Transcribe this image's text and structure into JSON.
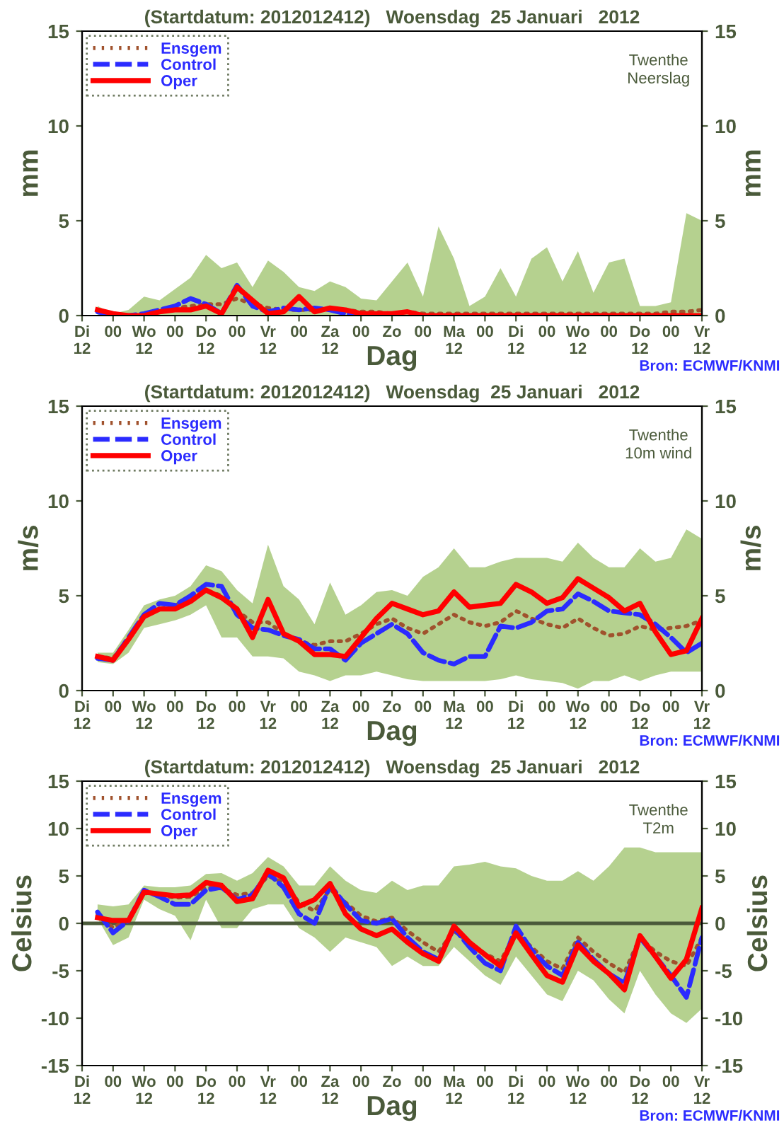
{
  "chart_data": [
    {
      "type": "line",
      "title": "(Startdatum: 2012012412)   Woensdag  25 Januari   2012",
      "xlabel": "Dag",
      "ylabel": "mm",
      "y2label": "mm",
      "annotations": [
        "Twenthe\nNeerslag",
        "Bron: ECMWF/KNMI"
      ],
      "legend": "top left",
      "grid": false,
      "categories": [
        "Di\n12",
        null,
        "00",
        null,
        "Wo\n12",
        null,
        "00",
        null,
        "Do\n12",
        null,
        "00",
        null,
        "Vr\n12",
        null,
        "00",
        null,
        "Za\n12",
        null,
        "00",
        null,
        "Zo",
        null,
        "00",
        null,
        "Ma\n12",
        null,
        "00",
        null,
        "Di\n12",
        null,
        "00",
        null,
        "Wo\n12",
        null,
        "00",
        null,
        "Do\n12",
        null,
        "00",
        null,
        "Vr\n12"
      ],
      "ylim": [
        0,
        15
      ],
      "yticks": [
        0,
        5,
        10,
        15
      ],
      "y2lim": [
        0,
        15
      ],
      "y2ticks": [
        0,
        5,
        10,
        15
      ],
      "series": [
        {
          "name": "Ensgem",
          "color": "#a0522d",
          "line_style": "dotted",
          "values": [
            null,
            0.2,
            0.1,
            0.0,
            0.1,
            0.2,
            0.4,
            0.5,
            0.6,
            0.6,
            0.9,
            0.6,
            0.4,
            0.3,
            0.3,
            0.3,
            0.4,
            0.3,
            0.2,
            0.2,
            0.1,
            0.2,
            0.1,
            0.1,
            0.1,
            0.1,
            0.1,
            0.1,
            0.1,
            0.1,
            0.1,
            0.1,
            0.1,
            0.1,
            0.1,
            0.1,
            0.1,
            0.1,
            0.2,
            0.2,
            0.3
          ],
          "lower": [
            null,
            0,
            0,
            0,
            0,
            0,
            0,
            0,
            0,
            0,
            0,
            0,
            0,
            0,
            0,
            0,
            0,
            0,
            0,
            0,
            0,
            0,
            0,
            0,
            0,
            0,
            0,
            0,
            0,
            0,
            0,
            0,
            0,
            0,
            0,
            0,
            0,
            0,
            0,
            0,
            0
          ],
          "upper": [
            null,
            0.5,
            0.1,
            0.3,
            1.0,
            0.8,
            1.4,
            2.0,
            3.2,
            2.5,
            2.8,
            1.5,
            2.9,
            2.3,
            1.5,
            1.3,
            1.8,
            1.5,
            0.9,
            0.8,
            1.8,
            2.8,
            1.0,
            4.7,
            3.0,
            0.5,
            1.0,
            2.5,
            1.0,
            3.0,
            3.6,
            1.8,
            3.4,
            1.2,
            2.8,
            3.0,
            0.5,
            0.5,
            0.7,
            5.4,
            5.0
          ]
        },
        {
          "name": "Control",
          "color": "#2b2bff",
          "line_style": "dashed",
          "values": [
            null,
            0.2,
            0.0,
            0.0,
            0.1,
            0.3,
            0.5,
            0.9,
            0.6,
            0.1,
            1.6,
            0.5,
            0.2,
            0.4,
            0.3,
            0.4,
            0.3,
            0.1,
            0.0,
            null,
            null,
            null,
            null,
            null,
            null,
            null,
            null,
            null,
            null,
            null,
            null,
            null,
            null,
            null,
            null,
            null,
            null,
            null,
            null,
            null,
            null
          ]
        },
        {
          "name": "Oper",
          "color": "#ff0000",
          "line_style": "solid",
          "values": [
            null,
            0.3,
            0.1,
            0.0,
            0.0,
            0.2,
            0.3,
            0.3,
            0.5,
            0.1,
            1.5,
            0.8,
            0.1,
            0.2,
            1.0,
            0.2,
            0.4,
            0.3,
            0.1,
            0.1,
            0.1,
            0.2,
            0.0,
            0.0,
            0.0,
            0.0,
            0.0,
            0.0,
            0.0,
            0.0,
            0.0,
            0.0,
            0.0,
            0.0,
            0.0,
            0.0,
            0.0,
            0.0,
            0.0,
            0.0,
            0.0
          ]
        }
      ]
    },
    {
      "type": "line",
      "title": "(Startdatum: 2012012412)   Woensdag  25 Januari   2012",
      "xlabel": "Dag",
      "ylabel": "m/s",
      "y2label": "m/s",
      "annotations": [
        "Twenthe\n10m wind",
        "Bron: ECMWF/KNMI"
      ],
      "legend": "top left",
      "grid": false,
      "categories": [
        "Di\n12",
        null,
        "00",
        null,
        "Wo\n12",
        null,
        "00",
        null,
        "Do\n12",
        null,
        "00",
        null,
        "Vr\n12",
        null,
        "00",
        null,
        "Za\n12",
        null,
        "00",
        null,
        "Zo",
        null,
        "00",
        null,
        "Ma\n12",
        null,
        "00",
        null,
        "Di\n12",
        null,
        "00",
        null,
        "Wo\n12",
        null,
        "00",
        null,
        "Do\n12",
        null,
        "00",
        null,
        "Vr\n12"
      ],
      "ylim": [
        0,
        15
      ],
      "yticks": [
        0,
        5,
        10,
        15
      ],
      "y2lim": [
        0,
        15
      ],
      "y2ticks": [
        0,
        5,
        10,
        15
      ],
      "series": [
        {
          "name": "Ensgem",
          "color": "#a0522d",
          "line_style": "dotted",
          "values": [
            null,
            1.8,
            1.7,
            2.8,
            3.9,
            4.3,
            4.5,
            4.8,
            5.3,
            5.0,
            4.2,
            3.6,
            3.6,
            3.0,
            2.6,
            2.4,
            2.6,
            2.6,
            3.0,
            3.5,
            3.8,
            3.3,
            3.0,
            3.5,
            4.0,
            3.6,
            3.4,
            3.6,
            4.2,
            3.8,
            3.5,
            3.3,
            3.8,
            3.3,
            2.9,
            3.0,
            3.4,
            3.2,
            3.3,
            3.4,
            3.7
          ],
          "lower": [
            null,
            1.5,
            1.4,
            2.0,
            3.3,
            3.5,
            3.7,
            4.0,
            4.5,
            2.8,
            2.8,
            1.8,
            1.8,
            1.7,
            1.0,
            0.8,
            0.5,
            0.8,
            0.8,
            1.0,
            0.8,
            0.6,
            0.5,
            0.5,
            0.5,
            0.5,
            0.5,
            0.6,
            0.8,
            0.6,
            0.5,
            0.4,
            0.1,
            0.5,
            0.5,
            0.8,
            0.5,
            0.8,
            1.0,
            1.0,
            1.0
          ],
          "upper": [
            null,
            2.0,
            2.0,
            3.2,
            4.5,
            4.8,
            5.0,
            5.5,
            6.6,
            6.3,
            5.3,
            4.6,
            7.7,
            5.5,
            4.8,
            3.5,
            5.7,
            4.0,
            4.5,
            5.2,
            5.3,
            5.0,
            6.0,
            6.5,
            7.5,
            6.5,
            6.5,
            6.8,
            7.0,
            7.0,
            7.0,
            6.8,
            7.8,
            7.0,
            6.5,
            6.5,
            7.5,
            6.8,
            7.0,
            8.5,
            8.0
          ]
        },
        {
          "name": "Control",
          "color": "#2b2bff",
          "line_style": "dashed",
          "values": [
            null,
            1.7,
            1.6,
            2.8,
            4.0,
            4.6,
            4.5,
            5.0,
            5.6,
            5.5,
            4.0,
            3.3,
            3.2,
            2.9,
            2.7,
            2.2,
            2.2,
            1.6,
            2.5,
            3.0,
            3.5,
            3.0,
            2.0,
            1.6,
            1.4,
            1.8,
            1.8,
            3.4,
            3.3,
            3.6,
            4.2,
            4.3,
            5.1,
            4.7,
            4.2,
            4.1,
            4.0,
            3.5,
            2.8,
            2.0,
            2.5
          ]
        },
        {
          "name": "Oper",
          "color": "#ff0000",
          "line_style": "solid",
          "values": [
            null,
            1.8,
            1.6,
            2.7,
            3.9,
            4.3,
            4.3,
            4.7,
            5.3,
            4.9,
            4.3,
            2.8,
            4.8,
            3.0,
            2.6,
            1.9,
            1.9,
            1.8,
            2.8,
            3.8,
            4.6,
            4.3,
            4.0,
            4.2,
            5.2,
            4.4,
            4.5,
            4.6,
            5.6,
            5.2,
            4.6,
            4.9,
            5.9,
            5.4,
            4.9,
            4.2,
            4.6,
            3.1,
            1.9,
            2.1,
            3.8
          ]
        }
      ]
    },
    {
      "type": "line",
      "title": "(Startdatum: 2012012412)   Woensdag  25 Januari   2012",
      "xlabel": "Dag",
      "ylabel": "Celsius",
      "y2label": "Celsius",
      "annotations": [
        "Twenthe\nT2m",
        "Bron: ECMWF/KNMI"
      ],
      "legend": "top left",
      "grid": false,
      "ref_lines": [
        {
          "axis": "y",
          "value": 0,
          "label": null,
          "color": "#4a5a3a"
        }
      ],
      "categories": [
        "Di\n12",
        null,
        "00",
        null,
        "Wo\n12",
        null,
        "00",
        null,
        "Do\n12",
        null,
        "00",
        null,
        "Vr\n12",
        null,
        "00",
        null,
        "Za\n12",
        null,
        "00",
        null,
        "Zo",
        null,
        "00",
        null,
        "Ma\n12",
        null,
        "00",
        null,
        "Di\n12",
        null,
        "00",
        null,
        "Wo\n12",
        null,
        "00",
        null,
        "Do\n12",
        null,
        "00",
        null,
        "Vr\n12"
      ],
      "ylim": [
        -15,
        15
      ],
      "yticks": [
        {
          "value": -15,
          "label": "-15"
        },
        {
          "value": -10,
          "label": "-10"
        },
        {
          "value": -5,
          "label": "-5"
        },
        0,
        5,
        10,
        15
      ],
      "y2lim": [
        -15,
        15
      ],
      "y2ticks": [
        {
          "value": -15,
          "label": "-15"
        },
        {
          "value": -10,
          "label": "-10"
        },
        {
          "value": -5,
          "label": "-5"
        },
        0,
        5,
        10,
        15
      ],
      "series": [
        {
          "name": "Ensgem",
          "color": "#a0522d",
          "line_style": "dotted",
          "values": [
            null,
            1.0,
            -0.5,
            0.5,
            3.2,
            3.0,
            2.7,
            2.8,
            3.8,
            3.7,
            3.0,
            3.2,
            5.0,
            4.3,
            2.2,
            1.3,
            3.6,
            2.2,
            0.8,
            0.2,
            0.6,
            -0.8,
            -2.0,
            -3.0,
            -0.8,
            -2.0,
            -3.2,
            -4.0,
            -1.0,
            -2.5,
            -4.0,
            -4.8,
            -1.5,
            -3.0,
            -4.2,
            -5.2,
            -1.5,
            -3.0,
            -4.0,
            -4.5,
            -1.5
          ],
          "lower": [
            null,
            0.5,
            -2.3,
            -1.5,
            2.5,
            1.5,
            0.8,
            -1.8,
            2.5,
            -0.5,
            -0.5,
            1.5,
            2.0,
            2.0,
            -0.5,
            -1.5,
            -3.0,
            -1.5,
            -2.0,
            -2.5,
            -4.5,
            -3.5,
            -4.5,
            -4.5,
            -2.5,
            -4.0,
            -5.5,
            -6.5,
            -3.5,
            -5.5,
            -7.5,
            -8.2,
            -5.0,
            -6.0,
            -8.0,
            -9.5,
            -5.0,
            -7.5,
            -9.5,
            -10.5,
            -9.0
          ],
          "upper": [
            null,
            2.0,
            1.8,
            2.0,
            4.0,
            3.8,
            3.8,
            4.0,
            5.2,
            5.3,
            4.5,
            5.3,
            7.0,
            6.0,
            4.0,
            4.0,
            6.0,
            4.5,
            3.5,
            3.2,
            4.5,
            3.5,
            4.0,
            4.0,
            6.0,
            6.2,
            6.5,
            6.0,
            5.8,
            5.0,
            4.5,
            4.5,
            5.5,
            4.5,
            6.0,
            8.0,
            8.0,
            7.5,
            7.5,
            7.5,
            7.5
          ]
        },
        {
          "name": "Control",
          "color": "#2b2bff",
          "line_style": "dashed",
          "values": [
            null,
            1.2,
            -1.0,
            0.3,
            3.5,
            2.8,
            2.0,
            2.0,
            3.5,
            3.8,
            2.5,
            3.0,
            5.3,
            3.8,
            1.0,
            0.0,
            4.0,
            2.0,
            0.3,
            0.0,
            0.5,
            -1.5,
            -3.0,
            -3.8,
            -0.5,
            -2.5,
            -4.2,
            -5.0,
            -0.3,
            -2.8,
            -4.5,
            -5.5,
            -2.0,
            -3.8,
            -5.3,
            -6.3,
            -1.5,
            -3.5,
            -5.5,
            -7.8,
            -1.5
          ]
        },
        {
          "name": "Oper",
          "color": "#ff0000",
          "line_style": "solid",
          "values": [
            null,
            0.6,
            0.3,
            0.3,
            3.3,
            3.1,
            2.9,
            3.0,
            4.3,
            4.0,
            2.3,
            2.6,
            5.6,
            4.8,
            1.8,
            2.5,
            4.2,
            1.0,
            -0.6,
            -1.3,
            -0.6,
            -2.0,
            -3.2,
            -4.0,
            -0.3,
            -2.0,
            -3.3,
            -4.5,
            -1.0,
            -3.3,
            -5.5,
            -6.2,
            -2.3,
            -4.0,
            -5.3,
            -7.0,
            -1.3,
            -3.5,
            -5.8,
            -3.8,
            1.6
          ]
        }
      ]
    }
  ]
}
